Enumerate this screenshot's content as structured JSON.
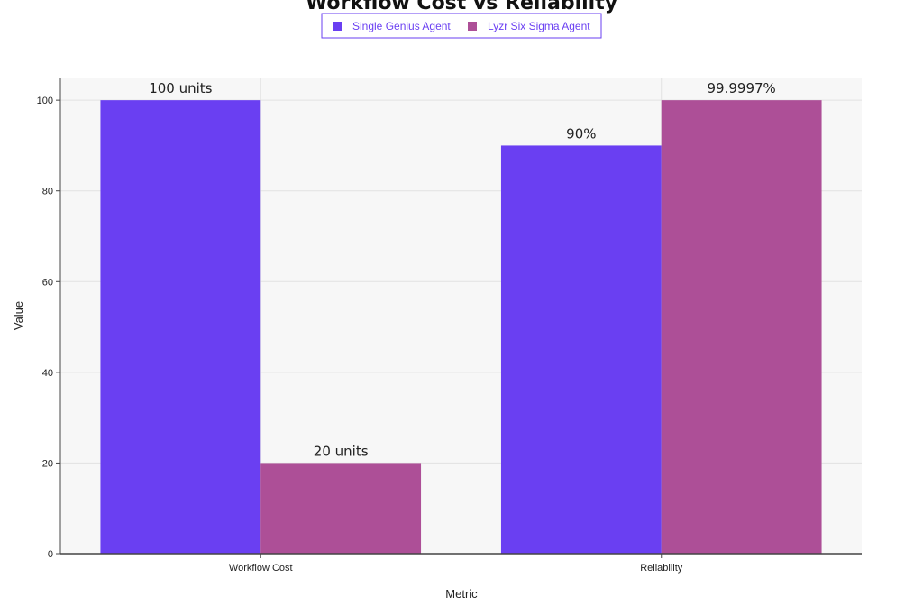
{
  "chart_data": {
    "type": "bar",
    "title": "Workflow Cost vs Reliability",
    "xlabel": "Metric",
    "ylabel": "Value",
    "categories": [
      "Workflow Cost",
      "Reliability"
    ],
    "series": [
      {
        "name": "Single Genius Agent",
        "color": "#6a3ff2",
        "values": [
          100,
          90
        ],
        "labels": [
          "100 units",
          "90%"
        ]
      },
      {
        "name": "Lyzr Six Sigma Agent",
        "color": "#ad4f97",
        "values": [
          20,
          99.9997
        ],
        "labels": [
          "20 units",
          "99.9997%"
        ]
      }
    ],
    "ylim": [
      0,
      105
    ],
    "yticks": [
      0,
      20,
      40,
      60,
      80,
      100
    ],
    "grid": true,
    "legend": {
      "position": "top-center",
      "text_color": "#6a3ff2",
      "border_color": "#6a3ff2"
    },
    "colors": {
      "plot_background": "#f7f7f7",
      "grid": "#e2e2e2",
      "axis": "#444444"
    }
  }
}
